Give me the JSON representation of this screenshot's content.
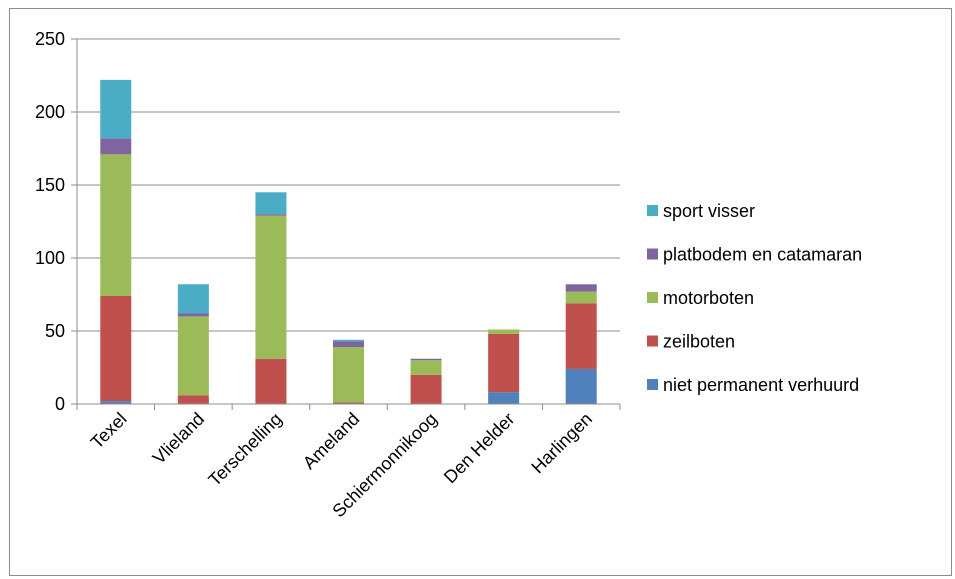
{
  "chart_data": {
    "type": "bar",
    "stacked": true,
    "categories": [
      "Texel",
      "Vlieland",
      "Terschelling",
      "Ameland",
      "Schiermonnikoog",
      "Den Helder",
      "Harlingen"
    ],
    "series": [
      {
        "name": "niet permanent verhuurd",
        "color": "#4f81bd",
        "values": [
          2,
          0,
          0,
          0,
          0,
          8,
          24
        ]
      },
      {
        "name": "zeilboten",
        "color": "#c0504d",
        "values": [
          72,
          6,
          31,
          1,
          20,
          40,
          45
        ]
      },
      {
        "name": "motorboten",
        "color": "#9bbb59",
        "values": [
          97,
          54,
          98,
          38,
          10,
          3,
          8
        ]
      },
      {
        "name": "platbodem en catamaran",
        "color": "#8064a2",
        "values": [
          11,
          2,
          1,
          4,
          1,
          0,
          5
        ]
      },
      {
        "name": "sport visser",
        "color": "#4bacc6",
        "values": [
          40,
          20,
          15,
          1,
          0,
          0,
          0
        ]
      }
    ],
    "yticks": [
      "0",
      "50",
      "100",
      "150",
      "200",
      "250"
    ],
    "ylim": [
      0,
      250
    ],
    "grid": true,
    "legend_position": "right",
    "title": "",
    "xlabel": "",
    "ylabel": ""
  }
}
